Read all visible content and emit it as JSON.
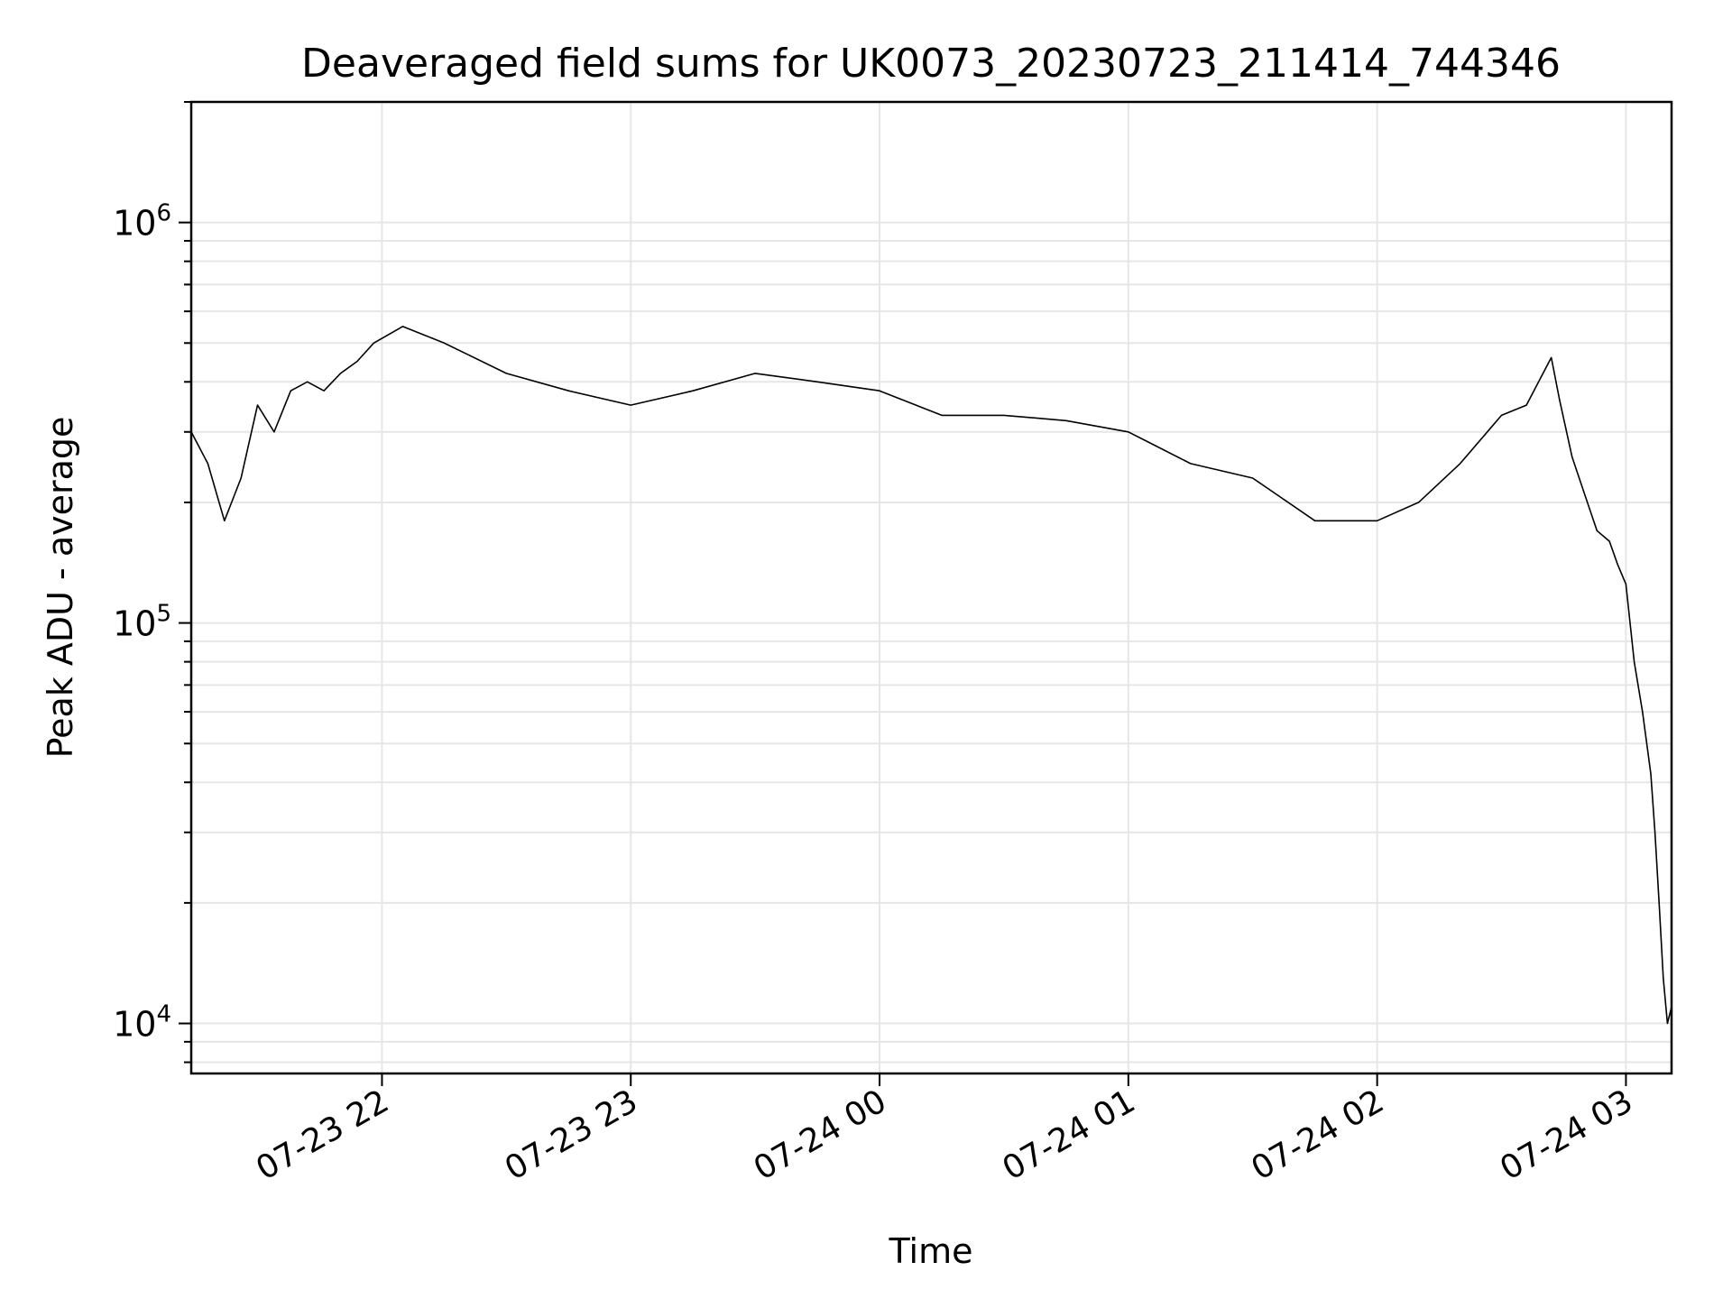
{
  "chart_data": {
    "type": "line",
    "title": "Deaveraged field sums for UK0073_20230723_211414_744346",
    "xlabel": "Time",
    "ylabel": "Peak ADU - average",
    "y_scale": "log",
    "ylim": [
      7500,
      2000000
    ],
    "xlim": [
      "2023-07-23 21:14",
      "2023-07-24 03:11"
    ],
    "grid": true,
    "legend": "none",
    "x_ticks": [
      {
        "time": "2023-07-23 22:00",
        "label": "07-23 22"
      },
      {
        "time": "2023-07-23 23:00",
        "label": "07-23 23"
      },
      {
        "time": "2023-07-24 00:00",
        "label": "07-24 00"
      },
      {
        "time": "2023-07-24 01:00",
        "label": "07-24 01"
      },
      {
        "time": "2023-07-24 02:00",
        "label": "07-24 02"
      },
      {
        "time": "2023-07-24 03:00",
        "label": "07-24 03"
      }
    ],
    "y_ticks": [
      {
        "value": 10000,
        "base": "10",
        "exp": "4"
      },
      {
        "value": 100000,
        "base": "10",
        "exp": "5"
      },
      {
        "value": 1000000,
        "base": "10",
        "exp": "6"
      }
    ],
    "series": [
      {
        "color": "#000000",
        "points": [
          [
            "2023-07-23 21:14",
            300000
          ],
          [
            "2023-07-23 21:18",
            250000
          ],
          [
            "2023-07-23 21:22",
            180000
          ],
          [
            "2023-07-23 21:26",
            230000
          ],
          [
            "2023-07-23 21:30",
            350000
          ],
          [
            "2023-07-23 21:34",
            300000
          ],
          [
            "2023-07-23 21:38",
            380000
          ],
          [
            "2023-07-23 21:42",
            400000
          ],
          [
            "2023-07-23 21:46",
            380000
          ],
          [
            "2023-07-23 21:50",
            420000
          ],
          [
            "2023-07-23 21:54",
            450000
          ],
          [
            "2023-07-23 21:58",
            500000
          ],
          [
            "2023-07-23 22:05",
            550000
          ],
          [
            "2023-07-23 22:15",
            500000
          ],
          [
            "2023-07-23 22:30",
            420000
          ],
          [
            "2023-07-23 22:45",
            380000
          ],
          [
            "2023-07-23 23:00",
            350000
          ],
          [
            "2023-07-23 23:15",
            380000
          ],
          [
            "2023-07-23 23:30",
            420000
          ],
          [
            "2023-07-23 23:45",
            400000
          ],
          [
            "2023-07-24 00:00",
            380000
          ],
          [
            "2023-07-24 00:15",
            330000
          ],
          [
            "2023-07-24 00:30",
            330000
          ],
          [
            "2023-07-24 00:45",
            320000
          ],
          [
            "2023-07-24 01:00",
            300000
          ],
          [
            "2023-07-24 01:15",
            250000
          ],
          [
            "2023-07-24 01:30",
            230000
          ],
          [
            "2023-07-24 01:45",
            180000
          ],
          [
            "2023-07-24 02:00",
            180000
          ],
          [
            "2023-07-24 02:10",
            200000
          ],
          [
            "2023-07-24 02:20",
            250000
          ],
          [
            "2023-07-24 02:30",
            330000
          ],
          [
            "2023-07-24 02:36",
            350000
          ],
          [
            "2023-07-24 02:40",
            420000
          ],
          [
            "2023-07-24 02:42",
            460000
          ],
          [
            "2023-07-24 02:44",
            360000
          ],
          [
            "2023-07-24 02:47",
            260000
          ],
          [
            "2023-07-24 02:50",
            210000
          ],
          [
            "2023-07-24 02:53",
            170000
          ],
          [
            "2023-07-24 02:56",
            160000
          ],
          [
            "2023-07-24 02:58",
            140000
          ],
          [
            "2023-07-24 03:00",
            125000
          ],
          [
            "2023-07-24 03:02",
            80000
          ],
          [
            "2023-07-24 03:04",
            60000
          ],
          [
            "2023-07-24 03:06",
            42000
          ],
          [
            "2023-07-24 03:07",
            30000
          ],
          [
            "2023-07-24 03:08",
            20000
          ],
          [
            "2023-07-24 03:09",
            13000
          ],
          [
            "2023-07-24 03:10",
            10000
          ],
          [
            "2023-07-24 03:11",
            11000
          ]
        ]
      }
    ]
  }
}
